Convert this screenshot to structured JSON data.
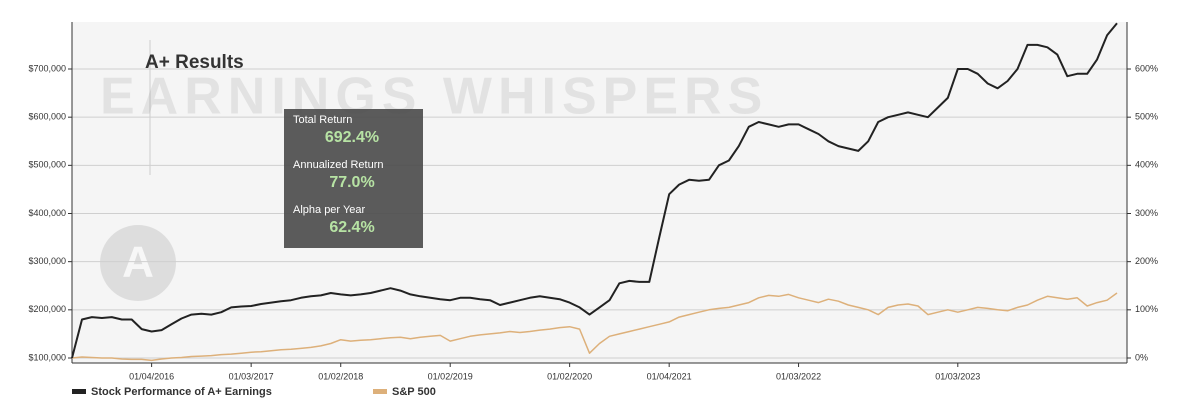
{
  "chart_data": {
    "type": "line",
    "title": "A+ Results",
    "watermark": "EARNINGS WHISPERS",
    "stats": [
      {
        "label": "Total Return",
        "value": "692.4%"
      },
      {
        "label": "Annualized Return",
        "value": "77.0%"
      },
      {
        "label": "Alpha per Year",
        "value": "62.4%"
      }
    ],
    "x": [
      null,
      null,
      null,
      null,
      null,
      null,
      null,
      null,
      "01/04/2016",
      null,
      null,
      null,
      null,
      null,
      null,
      null,
      null,
      null,
      "01/03/2017",
      null,
      null,
      null,
      null,
      null,
      null,
      null,
      null,
      "01/02/2018",
      null,
      null,
      null,
      null,
      null,
      null,
      null,
      null,
      null,
      null,
      "01/02/2019",
      null,
      null,
      null,
      null,
      null,
      null,
      null,
      null,
      null,
      null,
      null,
      "01/02/2020",
      null,
      null,
      null,
      null,
      null,
      null,
      null,
      null,
      null,
      "01/04/2021",
      null,
      null,
      null,
      null,
      null,
      null,
      null,
      null,
      null,
      null,
      null,
      null,
      "01/03/2022",
      null,
      null,
      null,
      null,
      null,
      null,
      null,
      null,
      null,
      null,
      null,
      null,
      null,
      null,
      null,
      "01/03/2023",
      null,
      null,
      null,
      null,
      null,
      null,
      null,
      null,
      null,
      null,
      null,
      null,
      null,
      null,
      null,
      null
    ],
    "series": [
      {
        "name": "Stock Performance of A+ Earnings",
        "color": "#222222",
        "values": [
          100000,
          180000,
          185000,
          183000,
          185000,
          180000,
          180000,
          160000,
          155000,
          158000,
          170000,
          182000,
          190000,
          192000,
          190000,
          195000,
          205000,
          207000,
          208000,
          212000,
          215000,
          218000,
          220000,
          225000,
          228000,
          230000,
          235000,
          232000,
          230000,
          232000,
          235000,
          240000,
          245000,
          240000,
          232000,
          228000,
          225000,
          222000,
          220000,
          225000,
          225000,
          222000,
          220000,
          210000,
          215000,
          220000,
          225000,
          228000,
          225000,
          222000,
          215000,
          205000,
          190000,
          205000,
          220000,
          255000,
          260000,
          258000,
          258000,
          350000,
          440000,
          460000,
          470000,
          468000,
          470000,
          500000,
          510000,
          540000,
          580000,
          590000,
          585000,
          580000,
          585000,
          585000,
          575000,
          565000,
          550000,
          540000,
          535000,
          530000,
          550000,
          590000,
          600000,
          605000,
          610000,
          605000,
          600000,
          620000,
          640000,
          700000,
          700000,
          690000,
          670000,
          660000,
          675000,
          700000,
          750000,
          750000,
          745000,
          730000,
          685000,
          690000,
          690000,
          720000,
          770000,
          795000
        ]
      },
      {
        "name": "S&P 500",
        "color": "#ddb07a",
        "values": [
          100000,
          102000,
          101000,
          100000,
          100000,
          98000,
          97000,
          97000,
          95000,
          98000,
          100000,
          101000,
          103000,
          104000,
          105000,
          107000,
          108000,
          110000,
          112000,
          113000,
          115000,
          117000,
          118000,
          120000,
          122000,
          125000,
          130000,
          138000,
          135000,
          137000,
          138000,
          140000,
          142000,
          143000,
          140000,
          143000,
          145000,
          147000,
          135000,
          140000,
          145000,
          148000,
          150000,
          152000,
          155000,
          153000,
          155000,
          158000,
          160000,
          163000,
          165000,
          160000,
          110000,
          130000,
          145000,
          150000,
          155000,
          160000,
          165000,
          170000,
          175000,
          185000,
          190000,
          195000,
          200000,
          203000,
          205000,
          210000,
          215000,
          225000,
          230000,
          228000,
          232000,
          225000,
          220000,
          215000,
          222000,
          218000,
          210000,
          205000,
          200000,
          190000,
          205000,
          210000,
          212000,
          208000,
          190000,
          195000,
          200000,
          195000,
          200000,
          205000,
          203000,
          200000,
          198000,
          205000,
          210000,
          220000,
          228000,
          225000,
          222000,
          225000,
          208000,
          215000,
          220000,
          235000
        ]
      }
    ],
    "ylim": [
      89600,
      797600
    ],
    "yticks": [
      {
        "value": 100000,
        "label": "$100,000"
      },
      {
        "value": 200000,
        "label": "$200,000"
      },
      {
        "value": 300000,
        "label": "$300,000"
      },
      {
        "value": 400000,
        "label": "$400,000"
      },
      {
        "value": 500000,
        "label": "$500,000"
      },
      {
        "value": 600000,
        "label": "$600,000"
      },
      {
        "value": 700000,
        "label": "$700,000"
      }
    ],
    "y2lim": [
      -10.4,
      697.6
    ],
    "y2ticks": [
      {
        "value": 0,
        "label": "0%"
      },
      {
        "value": 100,
        "label": "100%"
      },
      {
        "value": 200,
        "label": "200%"
      },
      {
        "value": 300,
        "label": "300%"
      },
      {
        "value": 400,
        "label": "400%"
      },
      {
        "value": 500,
        "label": "500%"
      },
      {
        "value": 600,
        "label": "600%"
      }
    ],
    "grid": true
  }
}
